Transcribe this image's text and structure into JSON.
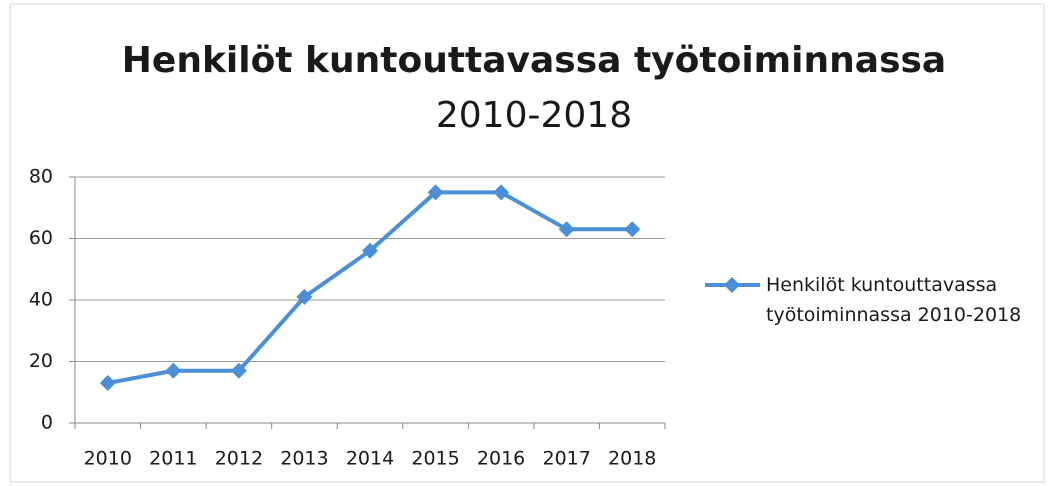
{
  "chart_data": {
    "type": "line",
    "title": "Henkilöt kuntouttavassa työtoiminnassa",
    "subtitle": "2010-2018",
    "categories": [
      "2010",
      "2011",
      "2012",
      "2013",
      "2014",
      "2015",
      "2016",
      "2017",
      "2018"
    ],
    "series": [
      {
        "name": "Henkilöt kuntouttavassa työtoiminnassa 2010-2018",
        "color": "#4a8fd8",
        "values": [
          13,
          17,
          17,
          41,
          56,
          75,
          75,
          63,
          63
        ]
      }
    ],
    "ylim": [
      0,
      80
    ],
    "yticks": [
      0,
      20,
      40,
      60,
      80
    ],
    "grid": true,
    "legend": "right"
  }
}
